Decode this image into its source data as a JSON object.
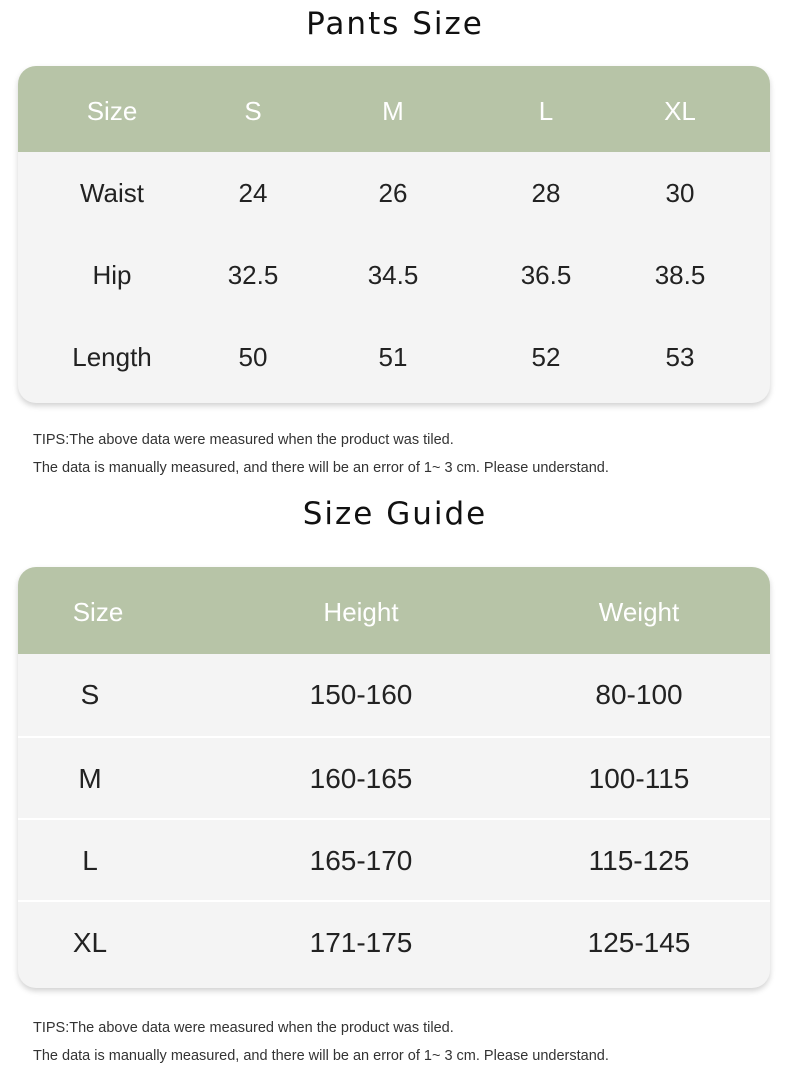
{
  "pants": {
    "title": "Pants Size",
    "headers": [
      "Size",
      "S",
      "M",
      "L",
      "XL"
    ],
    "rows": [
      [
        "Waist",
        "24",
        "26",
        "28",
        "30"
      ],
      [
        "Hip",
        "32.5",
        "34.5",
        "36.5",
        "38.5"
      ],
      [
        "Length",
        "50",
        "51",
        "52",
        "53"
      ]
    ],
    "tips": [
      "TIPS:The above data were measured when the product was tiled.",
      "The data is manually measured, and there will be an error of 1~ 3 cm. Please understand."
    ]
  },
  "guide": {
    "title": "Size Guide",
    "headers": [
      "Size",
      "Height",
      "Weight"
    ],
    "rows": [
      [
        "S",
        "150-160",
        "80-100"
      ],
      [
        "M",
        "160-165",
        "100-115"
      ],
      [
        "L",
        "165-170",
        "115-125"
      ],
      [
        "XL",
        "171-175",
        "125-145"
      ]
    ],
    "tips": [
      "TIPS:The above data were measured when the product was tiled.",
      "The data is manually measured, and there will be an error of 1~ 3 cm. Please understand."
    ]
  },
  "colors": {
    "header": "#b7c4a7",
    "body": "#f4f4f4"
  }
}
